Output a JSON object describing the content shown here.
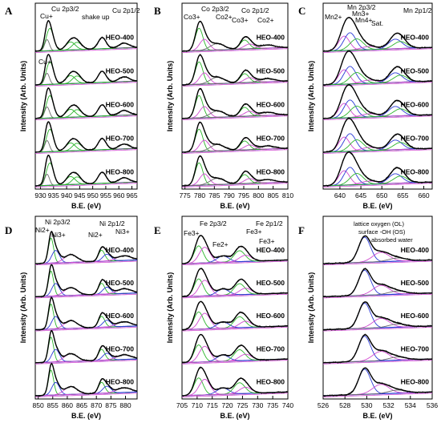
{
  "figure": {
    "colors": {
      "axis": "#000000",
      "experimental": "#2a2a2a",
      "envelope": "#000000",
      "background": "#1f2fd6",
      "offset": "#d04ad0"
    },
    "ylabel": "Intensity (Arb. Units)",
    "xlabel": "B.E. (eV)"
  },
  "chart_data": [
    {
      "panel": "A",
      "type": "line",
      "element": "Cu",
      "xlim": [
        928,
        967
      ],
      "xticks": [
        930,
        935,
        940,
        945,
        950,
        955,
        960,
        965
      ],
      "samples": [
        "HEO-400",
        "HEO-500",
        "HEO-600",
        "HEO-700",
        "HEO-800"
      ],
      "annotations": [
        "Cu 2p3/2",
        "Cu 2p1/2",
        "shake up",
        "Cu+",
        "Cu+"
      ],
      "peak_colors": [
        "#2bb52b",
        "#6a6a6a",
        "#2bb52b"
      ],
      "peaks": [
        {
          "c": 933.6,
          "w": 1.4,
          "h": 0.7
        },
        {
          "c": 932.5,
          "w": 0.9,
          "h": 0.35
        },
        {
          "c": 941.5,
          "w": 1.8,
          "h": 0.25
        },
        {
          "c": 944.0,
          "w": 1.8,
          "h": 0.23
        },
        {
          "c": 953.6,
          "w": 1.5,
          "h": 0.35
        },
        {
          "c": 962.0,
          "w": 2.0,
          "h": 0.15
        }
      ]
    },
    {
      "panel": "B",
      "type": "line",
      "element": "Co",
      "xlim": [
        774,
        810
      ],
      "xticks": [
        775,
        780,
        785,
        790,
        795,
        800,
        805,
        810
      ],
      "samples": [
        "HEO-400",
        "HEO-500",
        "HEO-600",
        "HEO-700",
        "HEO-800"
      ],
      "annotations": [
        "Co 2p3/2",
        "Co 2p1/2",
        "Co3+",
        "Co2+",
        "Co3+",
        "Co2+"
      ],
      "peak_colors": [
        "#2bb52b",
        "#d04ad0",
        "#6a6a6a"
      ],
      "peaks": [
        {
          "c": 779.8,
          "w": 1.3,
          "h": 0.7
        },
        {
          "c": 781.6,
          "w": 1.6,
          "h": 0.35
        },
        {
          "c": 786.0,
          "w": 2.4,
          "h": 0.2
        },
        {
          "c": 795.3,
          "w": 1.5,
          "h": 0.28
        },
        {
          "c": 797.0,
          "w": 1.8,
          "h": 0.15
        },
        {
          "c": 803.0,
          "w": 2.5,
          "h": 0.1
        }
      ]
    },
    {
      "panel": "C",
      "type": "line",
      "element": "Mn",
      "xlim": [
        636,
        662
      ],
      "xticks": [
        640,
        645,
        650,
        655,
        660
      ],
      "samples": [
        "HEO-400",
        "HEO-500",
        "HEO-600",
        "HEO-700",
        "HEO-800"
      ],
      "annotations": [
        "Mn 2p3/2",
        "Mn 2p1/2",
        "Mn2+",
        "Mn3+",
        "Mn4+",
        "Sat."
      ],
      "peak_colors": [
        "#d04ad0",
        "#2b3ad6",
        "#2bb52b"
      ],
      "peaks": [
        {
          "c": 641.0,
          "w": 1.3,
          "h": 0.45
        },
        {
          "c": 642.4,
          "w": 1.4,
          "h": 0.55
        },
        {
          "c": 644.0,
          "w": 1.6,
          "h": 0.35
        },
        {
          "c": 647.0,
          "w": 2.0,
          "h": 0.1
        },
        {
          "c": 653.2,
          "w": 1.6,
          "h": 0.3
        },
        {
          "c": 654.4,
          "w": 1.6,
          "h": 0.22
        }
      ]
    },
    {
      "panel": "D",
      "type": "line",
      "element": "Ni",
      "xlim": [
        849,
        884
      ],
      "xticks": [
        850,
        855,
        860,
        865,
        870,
        875,
        880
      ],
      "samples": [
        "HEO-400",
        "HEO-500",
        "HEO-600",
        "HEO-700",
        "HEO-800"
      ],
      "annotations": [
        "Ni 2p3/2",
        "Ni 2p1/2",
        "Ni2+",
        "Ni3+",
        "Ni2+",
        "Ni3+"
      ],
      "peak_colors": [
        "#2bb52b",
        "#2b3ad6",
        "#d04ad0"
      ],
      "peaks": [
        {
          "c": 854.4,
          "w": 0.9,
          "h": 0.8
        },
        {
          "c": 856.0,
          "w": 1.3,
          "h": 0.4
        },
        {
          "c": 861.2,
          "w": 2.2,
          "h": 0.25
        },
        {
          "c": 871.8,
          "w": 1.1,
          "h": 0.35
        },
        {
          "c": 873.6,
          "w": 1.4,
          "h": 0.22
        },
        {
          "c": 879.5,
          "w": 2.5,
          "h": 0.15
        }
      ]
    },
    {
      "panel": "E",
      "type": "line",
      "element": "Fe",
      "xlim": [
        705,
        740
      ],
      "xticks": [
        705,
        710,
        715,
        720,
        725,
        730,
        735,
        740
      ],
      "samples": [
        "HEO-400",
        "HEO-500",
        "HEO-600",
        "HEO-700",
        "HEO-800"
      ],
      "annotations": [
        "Fe 2p3/2",
        "Fe 2p1/2",
        "Fe3+",
        "Fe2+",
        "Fe3+",
        "Fe3+"
      ],
      "peak_colors": [
        "#2bb52b",
        "#d04ad0",
        "#2b3ad6"
      ],
      "peaks": [
        {
          "c": 710.5,
          "w": 1.5,
          "h": 0.55
        },
        {
          "c": 712.5,
          "w": 1.8,
          "h": 0.5
        },
        {
          "c": 718.5,
          "w": 2.0,
          "h": 0.2
        },
        {
          "c": 724.0,
          "w": 1.8,
          "h": 0.35
        },
        {
          "c": 726.0,
          "w": 2.0,
          "h": 0.2
        }
      ]
    },
    {
      "panel": "F",
      "type": "line",
      "element": "O",
      "xlim": [
        526,
        536
      ],
      "xticks": [
        526,
        528,
        530,
        532,
        534,
        536
      ],
      "samples": [
        "HEO-400",
        "HEO-500",
        "HEO-600",
        "HEO-700",
        "HEO-800"
      ],
      "annotations": [
        "lattice oxygen (OL)",
        "surface -OH (OS)",
        "absorbed water"
      ],
      "peak_colors": [
        "#2b3ad6",
        "#d04ad0",
        "#6a6a6a"
      ],
      "peaks": [
        {
          "c": 529.8,
          "w": 0.55,
          "h": 0.8
        },
        {
          "c": 531.3,
          "w": 0.75,
          "h": 0.3
        },
        {
          "c": 532.8,
          "w": 0.8,
          "h": 0.1
        }
      ]
    }
  ]
}
